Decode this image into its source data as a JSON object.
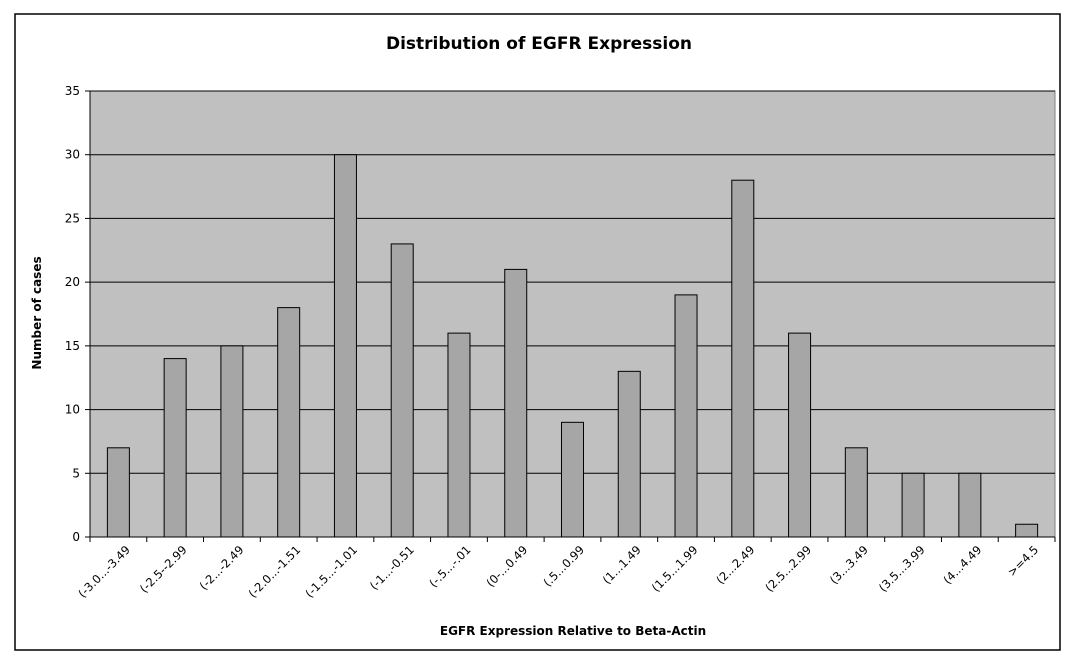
{
  "chart_data": {
    "type": "bar",
    "title": "Distribution of EGFR Expression",
    "xlabel": "EGFR Expression Relative to Beta-Actin",
    "ylabel": "Number of cases",
    "ylim": [
      0,
      35
    ],
    "yticks": [
      "0",
      "5",
      "10",
      "15",
      "20",
      "25",
      "30",
      "35"
    ],
    "grid": true,
    "legend": "none",
    "categories": [
      "(-3.0...-3.49",
      "(-2.5--2.99",
      "(-2...-2.49",
      "(-2.0...-1.51",
      "(-1.5...-1.01",
      "(-1...-0.51",
      "(-.5...-.01",
      "(0-...0.49",
      "(.5...0.99",
      "(1...1.49",
      "(1.5...1.99",
      "(2...2.49",
      "(2.5...2.99",
      "(3...3.49",
      "(3.5...3.99",
      "(4...4.49",
      ">=4.5"
    ],
    "values": [
      7,
      14,
      15,
      18,
      30,
      23,
      16,
      21,
      9,
      13,
      19,
      28,
      16,
      7,
      5,
      5,
      1
    ]
  },
  "colors": {
    "plot_area": "#c0c0c0",
    "bar_fill": "#a6a6a6",
    "bar_stroke": "#000000",
    "gridline": "#000000",
    "frame": "#000000"
  }
}
